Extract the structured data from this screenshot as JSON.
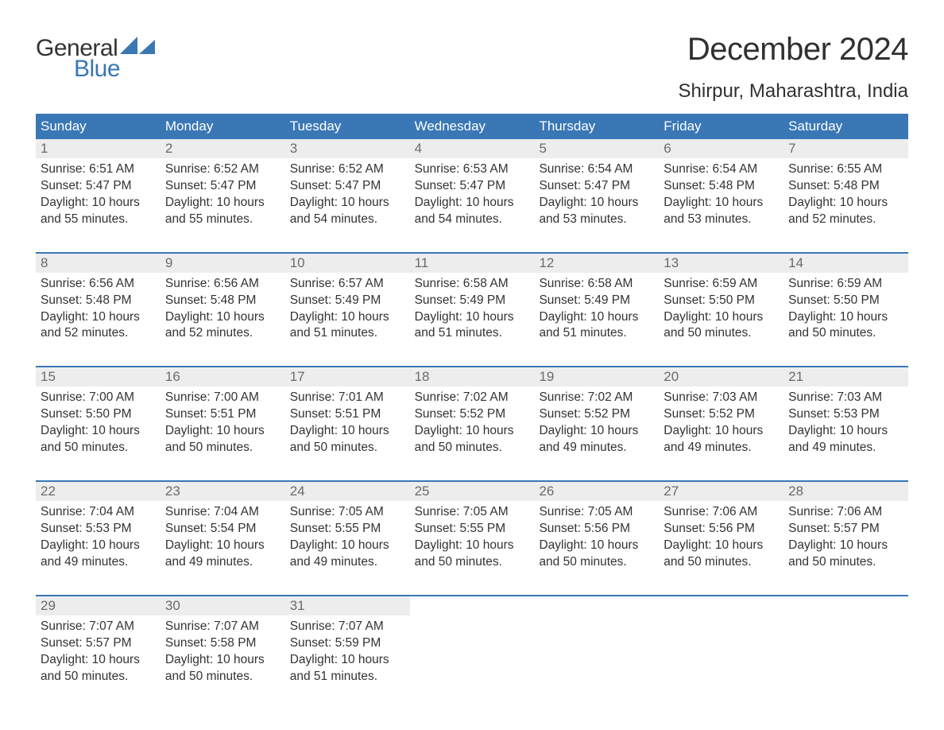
{
  "brand": {
    "word1": "General",
    "word2": "Blue",
    "word1_color": "#333333",
    "word2_color": "#3a77b5"
  },
  "title": "December 2024",
  "location": "Shirpur, Maharashtra, India",
  "colors": {
    "header_bg": "#3a77b5",
    "header_text": "#ffffff",
    "daynum_bg": "#ededed",
    "daynum_text": "#6b6b6b",
    "body_text": "#333333",
    "rule": "#3a77b5",
    "background": "#ffffff"
  },
  "day_names": [
    "Sunday",
    "Monday",
    "Tuesday",
    "Wednesday",
    "Thursday",
    "Friday",
    "Saturday"
  ],
  "weeks": [
    [
      {
        "n": "1",
        "sunrise": "6:51 AM",
        "sunset": "5:47 PM",
        "daylight": "10 hours and 55 minutes."
      },
      {
        "n": "2",
        "sunrise": "6:52 AM",
        "sunset": "5:47 PM",
        "daylight": "10 hours and 55 minutes."
      },
      {
        "n": "3",
        "sunrise": "6:52 AM",
        "sunset": "5:47 PM",
        "daylight": "10 hours and 54 minutes."
      },
      {
        "n": "4",
        "sunrise": "6:53 AM",
        "sunset": "5:47 PM",
        "daylight": "10 hours and 54 minutes."
      },
      {
        "n": "5",
        "sunrise": "6:54 AM",
        "sunset": "5:47 PM",
        "daylight": "10 hours and 53 minutes."
      },
      {
        "n": "6",
        "sunrise": "6:54 AM",
        "sunset": "5:48 PM",
        "daylight": "10 hours and 53 minutes."
      },
      {
        "n": "7",
        "sunrise": "6:55 AM",
        "sunset": "5:48 PM",
        "daylight": "10 hours and 52 minutes."
      }
    ],
    [
      {
        "n": "8",
        "sunrise": "6:56 AM",
        "sunset": "5:48 PM",
        "daylight": "10 hours and 52 minutes."
      },
      {
        "n": "9",
        "sunrise": "6:56 AM",
        "sunset": "5:48 PM",
        "daylight": "10 hours and 52 minutes."
      },
      {
        "n": "10",
        "sunrise": "6:57 AM",
        "sunset": "5:49 PM",
        "daylight": "10 hours and 51 minutes."
      },
      {
        "n": "11",
        "sunrise": "6:58 AM",
        "sunset": "5:49 PM",
        "daylight": "10 hours and 51 minutes."
      },
      {
        "n": "12",
        "sunrise": "6:58 AM",
        "sunset": "5:49 PM",
        "daylight": "10 hours and 51 minutes."
      },
      {
        "n": "13",
        "sunrise": "6:59 AM",
        "sunset": "5:50 PM",
        "daylight": "10 hours and 50 minutes."
      },
      {
        "n": "14",
        "sunrise": "6:59 AM",
        "sunset": "5:50 PM",
        "daylight": "10 hours and 50 minutes."
      }
    ],
    [
      {
        "n": "15",
        "sunrise": "7:00 AM",
        "sunset": "5:50 PM",
        "daylight": "10 hours and 50 minutes."
      },
      {
        "n": "16",
        "sunrise": "7:00 AM",
        "sunset": "5:51 PM",
        "daylight": "10 hours and 50 minutes."
      },
      {
        "n": "17",
        "sunrise": "7:01 AM",
        "sunset": "5:51 PM",
        "daylight": "10 hours and 50 minutes."
      },
      {
        "n": "18",
        "sunrise": "7:02 AM",
        "sunset": "5:52 PM",
        "daylight": "10 hours and 50 minutes."
      },
      {
        "n": "19",
        "sunrise": "7:02 AM",
        "sunset": "5:52 PM",
        "daylight": "10 hours and 49 minutes."
      },
      {
        "n": "20",
        "sunrise": "7:03 AM",
        "sunset": "5:52 PM",
        "daylight": "10 hours and 49 minutes."
      },
      {
        "n": "21",
        "sunrise": "7:03 AM",
        "sunset": "5:53 PM",
        "daylight": "10 hours and 49 minutes."
      }
    ],
    [
      {
        "n": "22",
        "sunrise": "7:04 AM",
        "sunset": "5:53 PM",
        "daylight": "10 hours and 49 minutes."
      },
      {
        "n": "23",
        "sunrise": "7:04 AM",
        "sunset": "5:54 PM",
        "daylight": "10 hours and 49 minutes."
      },
      {
        "n": "24",
        "sunrise": "7:05 AM",
        "sunset": "5:55 PM",
        "daylight": "10 hours and 49 minutes."
      },
      {
        "n": "25",
        "sunrise": "7:05 AM",
        "sunset": "5:55 PM",
        "daylight": "10 hours and 50 minutes."
      },
      {
        "n": "26",
        "sunrise": "7:05 AM",
        "sunset": "5:56 PM",
        "daylight": "10 hours and 50 minutes."
      },
      {
        "n": "27",
        "sunrise": "7:06 AM",
        "sunset": "5:56 PM",
        "daylight": "10 hours and 50 minutes."
      },
      {
        "n": "28",
        "sunrise": "7:06 AM",
        "sunset": "5:57 PM",
        "daylight": "10 hours and 50 minutes."
      }
    ],
    [
      {
        "n": "29",
        "sunrise": "7:07 AM",
        "sunset": "5:57 PM",
        "daylight": "10 hours and 50 minutes."
      },
      {
        "n": "30",
        "sunrise": "7:07 AM",
        "sunset": "5:58 PM",
        "daylight": "10 hours and 50 minutes."
      },
      {
        "n": "31",
        "sunrise": "7:07 AM",
        "sunset": "5:59 PM",
        "daylight": "10 hours and 51 minutes."
      },
      null,
      null,
      null,
      null
    ]
  ],
  "labels": {
    "sunrise": "Sunrise:",
    "sunset": "Sunset:",
    "daylight": "Daylight:"
  }
}
